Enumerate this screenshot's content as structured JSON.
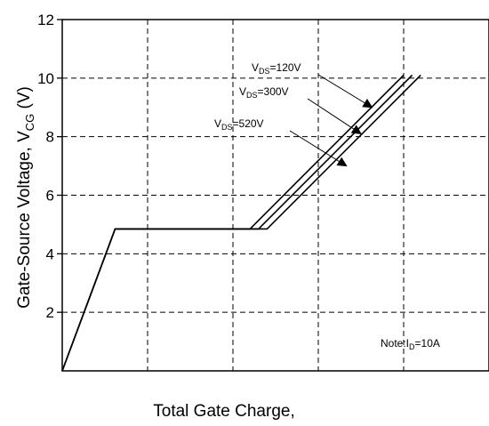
{
  "chart_data": {
    "type": "line",
    "title": "",
    "xlabel": "Total Gate Charge,",
    "ylabel": "Gate-Source Voltage, V",
    "ylabel_sub": "CG",
    "ylabel_unit": " (V)",
    "ylim": [
      0,
      12
    ],
    "yticks": [
      "2",
      "4",
      "6",
      "8",
      "10",
      "12"
    ],
    "ytick_values": [
      2,
      4,
      6,
      8,
      10,
      12
    ],
    "xlim": [
      0,
      5
    ],
    "xgrid": [
      1,
      2,
      3,
      4
    ],
    "grid": true,
    "series": [
      {
        "x": [
          0,
          0.62,
          2.2,
          4.0
        ],
        "y": [
          0,
          4.85,
          4.85,
          10.1
        ]
      },
      {
        "x": [
          0,
          0.62,
          2.3,
          4.1
        ],
        "y": [
          0,
          4.85,
          4.85,
          10.1
        ]
      },
      {
        "x": [
          0,
          0.62,
          2.4,
          4.2
        ],
        "y": [
          0,
          4.85,
          4.85,
          10.1
        ]
      }
    ],
    "annotations": [
      {
        "pre": "V",
        "sub": "DS",
        "post": "=120V",
        "target": [
          3.63,
          9.0
        ]
      },
      {
        "pre": "V",
        "sub": "DS",
        "post": "=300V",
        "target": [
          3.5,
          8.1
        ]
      },
      {
        "pre": "V",
        "sub": "DS",
        "post": "=520V",
        "target": [
          3.33,
          7.0
        ]
      }
    ],
    "note": {
      "pre": "Note:I",
      "sub": "D",
      "post": "=10A"
    }
  }
}
